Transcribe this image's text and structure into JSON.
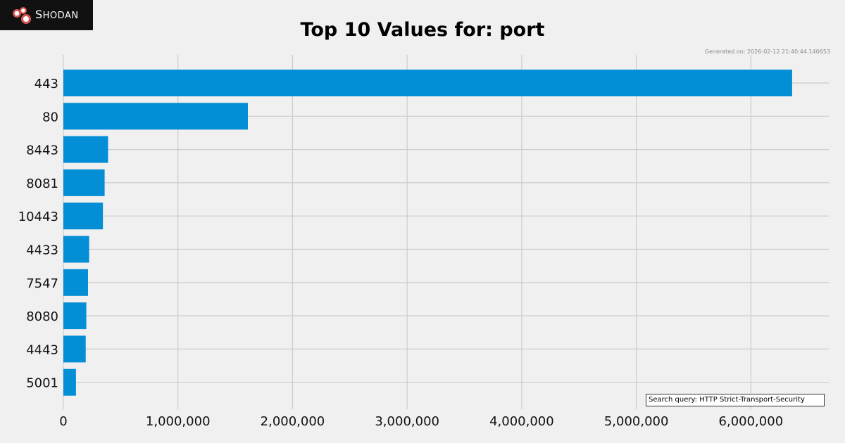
{
  "logo": {
    "text_first": "S",
    "text_rest": "HODAN",
    "icon": "shodan-logo-icon"
  },
  "generated_text": "Generated on: 2026-02-12 21:40:44.140653",
  "search_query": "Search query: HTTP Strict-Transport-Security",
  "colors": {
    "bar": "#038ed5",
    "background": "#f0f0f0",
    "grid": "#cbcbcb",
    "logo_bg": "#111111",
    "logo_accent": "#d9534f"
  },
  "chart_data": {
    "type": "bar",
    "orientation": "horizontal",
    "title": "Top 10 Values for: port",
    "xlabel": "",
    "ylabel": "",
    "categories": [
      "443",
      "80",
      "8443",
      "8081",
      "10443",
      "4433",
      "7547",
      "8080",
      "4443",
      "5001"
    ],
    "values": [
      6360000,
      1610000,
      390000,
      360000,
      345000,
      225000,
      215000,
      200000,
      195000,
      110000
    ],
    "xlim": [
      0,
      6680000
    ],
    "xticks": [
      0,
      1000000,
      2000000,
      3000000,
      4000000,
      5000000,
      6000000
    ],
    "xtick_labels": [
      "0",
      "1,000,000",
      "2,000,000",
      "3,000,000",
      "4,000,000",
      "5,000,000",
      "6,000,000"
    ],
    "grid": true,
    "legend": "none"
  }
}
